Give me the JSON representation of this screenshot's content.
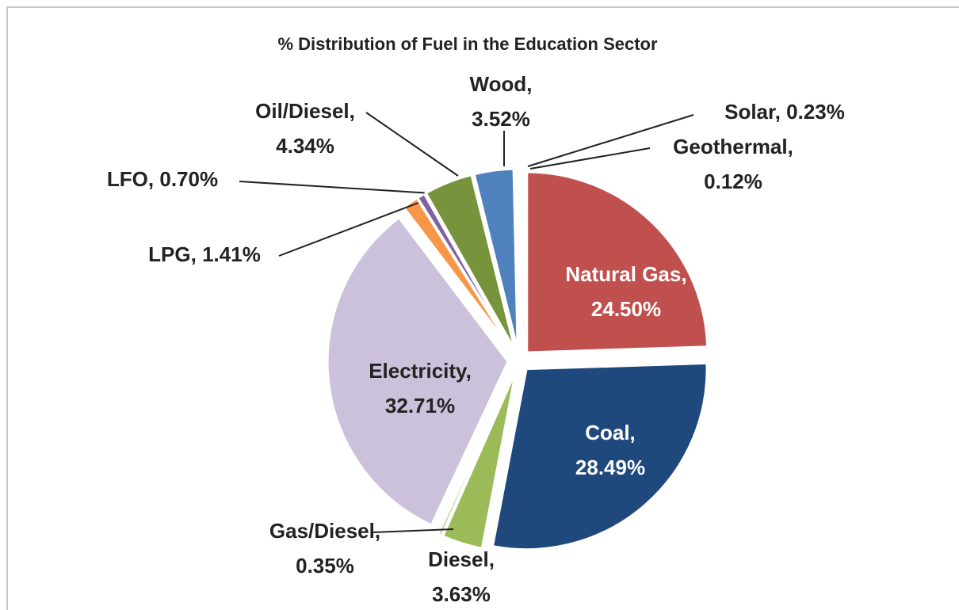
{
  "chart_data": {
    "type": "pie",
    "title": "% Distribution of Fuel in the Education Sector",
    "categories": [
      "Natural Gas",
      "Coal",
      "Diesel",
      "Gas/Diesel",
      "Electricity",
      "LPG",
      "LFO",
      "Oil/Diesel",
      "Wood",
      "Solar",
      "Geothermal"
    ],
    "values": [
      24.5,
      28.49,
      3.63,
      0.35,
      32.71,
      1.41,
      0.7,
      4.34,
      3.52,
      0.23,
      0.12
    ],
    "value_labels": [
      "24.50%",
      "28.49%",
      "3.63%",
      "0.35%",
      "32.71%",
      "1.41%",
      "0.70%",
      "4.34%",
      "3.52%",
      "0.23%",
      "0.12%"
    ],
    "colors": [
      "#c0504d",
      "#1f497d",
      "#9bbb59",
      "#c3d69b",
      "#ccc1da",
      "#f79646",
      "#8064a2",
      "#77933c",
      "#4f81bd",
      "#ffff99",
      "#fac090"
    ]
  }
}
